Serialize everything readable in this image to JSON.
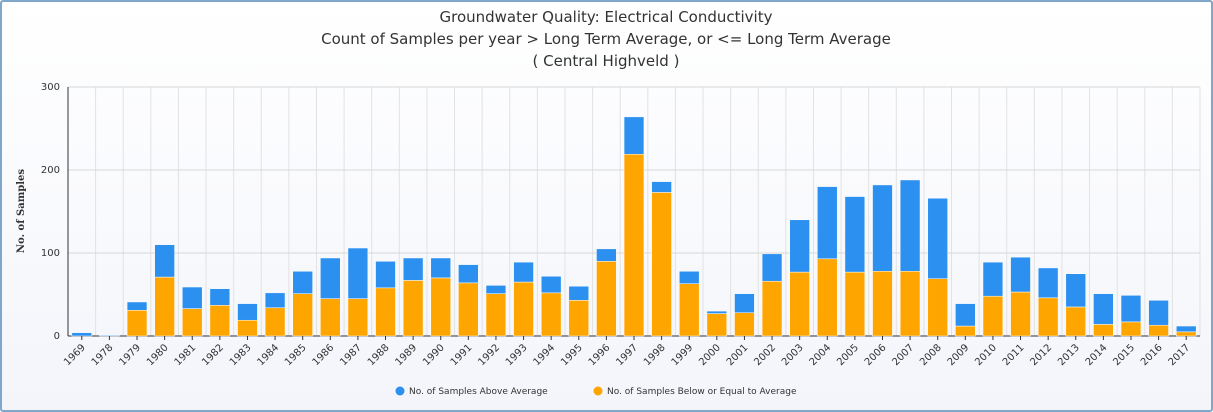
{
  "chart_data": {
    "type": "stacked_bar",
    "title": "Groundwater Quality: Electrical Conductivity",
    "subtitle": "Count of Samples per year > Long Term Average, or <= Long Term Average",
    "region": "( Central Highveld )",
    "y_label": "No. of Samples",
    "categories": [
      "1969",
      "1978",
      "1979",
      "1980",
      "1981",
      "1982",
      "1983",
      "1984",
      "1985",
      "1986",
      "1987",
      "1988",
      "1989",
      "1990",
      "1991",
      "1992",
      "1993",
      "1994",
      "1995",
      "1996",
      "1997",
      "1998",
      "1999",
      "2000",
      "2001",
      "2002",
      "2003",
      "2004",
      "2005",
      "2006",
      "2007",
      "2008",
      "2009",
      "2010",
      "2011",
      "2012",
      "2013",
      "2014",
      "2015",
      "2016",
      "2017"
    ],
    "series": [
      {
        "name": "No. of Samples Above Average",
        "color": "#2b90f0",
        "values": [
          4,
          1,
          10,
          39,
          26,
          20,
          20,
          18,
          27,
          49,
          61,
          32,
          27,
          24,
          22,
          10,
          24,
          20,
          17,
          15,
          45,
          13,
          15,
          3,
          23,
          33,
          63,
          87,
          91,
          104,
          110,
          97,
          27,
          41,
          42,
          36,
          40,
          37,
          32,
          30,
          7
        ]
      },
      {
        "name": "No. of Samples Below or Equal to Average",
        "color": "#ffa500",
        "values": [
          0,
          0,
          31,
          71,
          33,
          37,
          19,
          34,
          51,
          45,
          45,
          58,
          67,
          70,
          64,
          51,
          65,
          52,
          43,
          90,
          219,
          173,
          63,
          27,
          28,
          66,
          77,
          93,
          77,
          78,
          78,
          69,
          12,
          48,
          53,
          46,
          35,
          14,
          17,
          13,
          5
        ]
      }
    ],
    "ylim": [
      0,
      300
    ],
    "yticks": [
      0,
      100,
      200,
      300
    ],
    "grid": true
  }
}
